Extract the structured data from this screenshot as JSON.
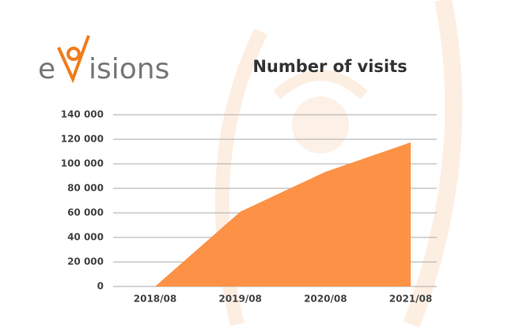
{
  "logo": {
    "prefix": "e",
    "suffix": "isions"
  },
  "chart_data": {
    "type": "area",
    "title": "Number of visits",
    "categories": [
      "2018/08",
      "2019/08",
      "2020/08",
      "2021/08"
    ],
    "values": [
      0,
      61000,
      93500,
      117500
    ],
    "color": "#fd9246",
    "ylim": [
      0,
      140000
    ],
    "yticks": [
      0,
      {
        "value": 20000,
        "label": "20 000"
      },
      {
        "value": 40000,
        "label": "40 000"
      },
      {
        "value": 60000,
        "label": "60 000"
      },
      {
        "value": 80000,
        "label": "80 000"
      },
      {
        "value": 100000,
        "label": "100 000"
      },
      {
        "value": 120000,
        "label": "120 000"
      },
      {
        "value": 140000,
        "label": "140 000"
      }
    ],
    "grid": true
  }
}
